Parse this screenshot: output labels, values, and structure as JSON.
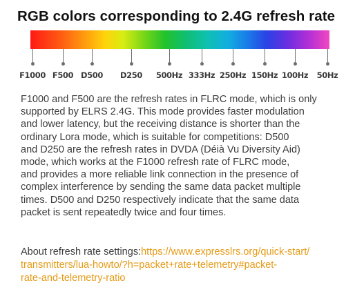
{
  "title": "RGB colors corresponding to 2.4G refresh rate",
  "spectrum": {
    "colors": [
      "#ff1a14",
      "#ff9a0e",
      "#ffd40a",
      "#22c22a",
      "#0fc0b0",
      "#1a78e8",
      "#6a2ee0",
      "#f247c0"
    ]
  },
  "rate_labels": [
    "F1000",
    "F500",
    "D500",
    "D250",
    "500Hz",
    "333Hz",
    "250Hz",
    "150Hz",
    "100Hz",
    "50Hz"
  ],
  "description_lines": [
    "F1000 and F500 are the refresh rates in FLRC mode, which is only",
    "supported by ELRS 2.4G. This mode provides faster modulation",
    "and lower latency, but the receiving distance is shorter than the",
    "ordinary Lora mode, which is suitable for competitions: D500",
    "and D250 are the refresh rates in DVDA (Déià Vu Diversity Aid)",
    "mode, which works at the F1000 refresh rate of FLRC mode,",
    "and provides a more reliable link connection in the presence of",
    "complex interference by sending the same data packet multiple",
    "times. D500 and D250 respectively indicate that the same data",
    "packet is sent repeatedly twice and four times."
  ],
  "settings_link": {
    "label": "About refresh rate settings:",
    "url_line1": "https://www.expresslrs.org/quick-start/",
    "url_line2": "transmitters/lua-howto/?h=packet+rate+telemetry#packet-",
    "url_line3": "rate-and-telemetry-ratio",
    "color": "#e59a14"
  }
}
